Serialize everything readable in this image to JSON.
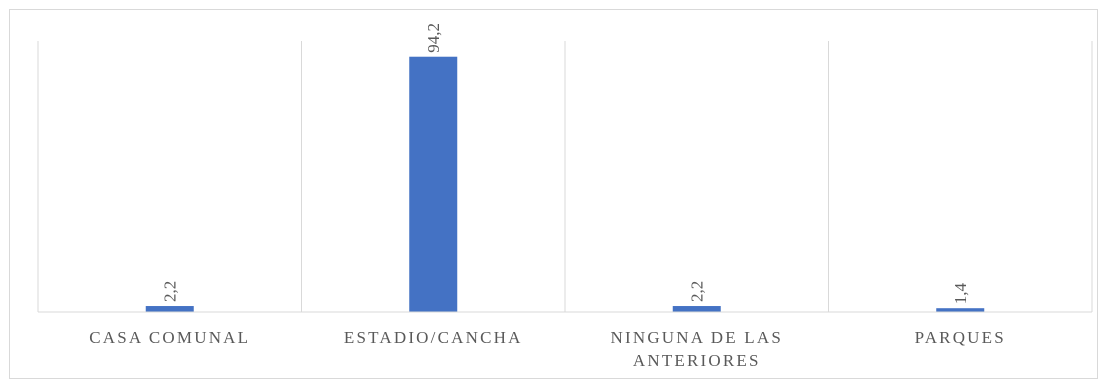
{
  "chart_data": {
    "type": "bar",
    "title": "",
    "xlabel": "",
    "ylabel": "",
    "categories": [
      [
        "CASA COMUNAL"
      ],
      [
        "ESTADIO/CANCHA"
      ],
      [
        "NINGUNA DE LAS",
        "ANTERIORES"
      ],
      [
        "PARQUES"
      ]
    ],
    "values": [
      2.2,
      94.2,
      2.2,
      1.4
    ],
    "data_labels": [
      "2,2",
      "94,2",
      "2,2",
      "1,4"
    ],
    "ylim": [
      0,
      100
    ],
    "grid": false,
    "legend": "none",
    "bar_color": "#4472c4",
    "divider_color": "#d9d9d9",
    "axis_color": "#d9d9d9",
    "label_color": "#595959"
  }
}
